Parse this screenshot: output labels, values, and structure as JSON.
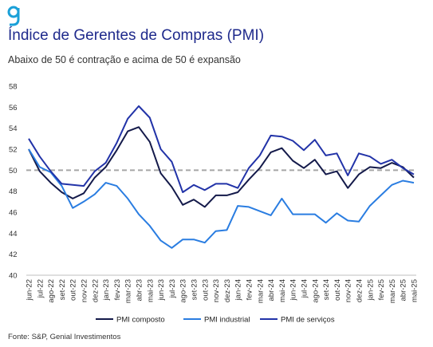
{
  "header": {
    "logo_letter": "g",
    "title": "Índice de Gerentes de Compras (PMI)",
    "subtitle": "Abaixo de 50 é contração e acima de 50 é expansão"
  },
  "footer": {
    "source": "Fonte: S&P, Genial Investimentos"
  },
  "colors": {
    "brand": "#1f2a8c",
    "logo": "#1aa0d8",
    "composto": "#141a4a",
    "industrial": "#2a7de1",
    "servicos": "#2233a8",
    "reference": "#a6a6a6"
  },
  "chart_data": {
    "type": "line",
    "title": "Índice de Gerentes de Compras (PMI)",
    "subtitle": "Abaixo de 50 é contração e acima de 50 é expansão",
    "ylim": [
      40,
      58
    ],
    "yticks": [
      40,
      42,
      44,
      46,
      48,
      50,
      52,
      54,
      56,
      58
    ],
    "reference_line": 50,
    "grid": false,
    "legend_position": "bottom",
    "categories": [
      "jun-22",
      "jul-22",
      "ago-22",
      "set-22",
      "out-22",
      "nov-22",
      "dez-22",
      "jan-23",
      "fev-23",
      "mar-23",
      "abr-23",
      "mai-23",
      "jun-23",
      "jul-23",
      "ago-23",
      "set-23",
      "out-23",
      "nov-23",
      "dez-23",
      "jan-24",
      "fev-24",
      "mar-24",
      "abr-24",
      "mai-24",
      "jun-24",
      "jul-24",
      "ago-24",
      "set-24",
      "out-24",
      "nov-24",
      "dez-24",
      "jan-25",
      "fev-25",
      "mar-25",
      "abr-25",
      "mai-25"
    ],
    "series": [
      {
        "name": "PMI composto",
        "color": "#141a4a",
        "values": [
          52.0,
          49.9,
          48.8,
          47.9,
          47.3,
          47.8,
          49.3,
          50.3,
          51.9,
          53.7,
          54.1,
          52.7,
          49.7,
          48.4,
          46.7,
          47.2,
          46.5,
          47.6,
          47.6,
          47.9,
          49.1,
          50.2,
          51.7,
          52.1,
          50.9,
          50.2,
          51.0,
          49.6,
          49.9,
          48.3,
          49.6,
          50.3,
          50.2,
          50.7,
          50.3,
          49.3
        ]
      },
      {
        "name": "PMI industrial",
        "color": "#2a7de1",
        "values": [
          52.0,
          50.3,
          49.8,
          48.5,
          46.4,
          47.0,
          47.7,
          48.8,
          48.5,
          47.3,
          45.8,
          44.7,
          43.3,
          42.6,
          43.4,
          43.4,
          43.1,
          44.2,
          44.3,
          46.6,
          46.5,
          46.1,
          45.7,
          47.3,
          45.8,
          45.8,
          45.8,
          45.0,
          45.9,
          45.2,
          45.1,
          46.6,
          47.6,
          48.6,
          49.0,
          48.8
        ]
      },
      {
        "name": "PMI de serviços",
        "color": "#2233a8",
        "values": [
          53.0,
          51.3,
          49.9,
          48.7,
          48.6,
          48.5,
          49.9,
          50.7,
          52.6,
          54.9,
          56.1,
          55.0,
          52.0,
          50.8,
          47.9,
          48.6,
          48.1,
          48.7,
          48.7,
          48.3,
          50.2,
          51.4,
          53.3,
          53.2,
          52.8,
          51.9,
          52.9,
          51.4,
          51.6,
          49.5,
          51.6,
          51.3,
          50.6,
          51.0,
          50.2,
          49.6
        ]
      }
    ]
  }
}
